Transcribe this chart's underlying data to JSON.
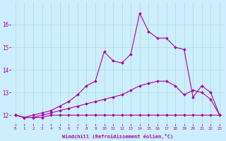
{
  "title": "",
  "xlabel": "Windchill (Refroidissement éolien,°C)",
  "ylabel": "",
  "background_color": "#cceeff",
  "grid_color": "#aaddcc",
  "line_color": "#aa00aa",
  "marker_color": "#aa00aa",
  "xlim": [
    -0.5,
    23.5
  ],
  "ylim": [
    11.6,
    17.0
  ],
  "yticks": [
    12,
    13,
    14,
    15,
    16
  ],
  "xticks": [
    0,
    1,
    2,
    3,
    4,
    5,
    6,
    7,
    8,
    9,
    10,
    11,
    12,
    13,
    14,
    15,
    16,
    17,
    18,
    19,
    20,
    21,
    22,
    23
  ],
  "series": [
    {
      "x": [
        0,
        1,
        2,
        3,
        4,
        5,
        6,
        7,
        8,
        9,
        10,
        11,
        12,
        13,
        14,
        15,
        16,
        17,
        18,
        19,
        20,
        21,
        22,
        23
      ],
      "y": [
        12.0,
        11.9,
        11.9,
        11.9,
        12.0,
        12.0,
        12.0,
        12.0,
        12.0,
        12.0,
        12.0,
        12.0,
        12.0,
        12.0,
        12.0,
        12.0,
        12.0,
        12.0,
        12.0,
        12.0,
        12.0,
        12.0,
        12.0,
        12.0
      ]
    },
    {
      "x": [
        0,
        1,
        2,
        3,
        4,
        5,
        6,
        7,
        8,
        9,
        10,
        11,
        12,
        13,
        14,
        15,
        16,
        17,
        18,
        19,
        20,
        21,
        22,
        23
      ],
      "y": [
        12.0,
        11.9,
        11.9,
        12.0,
        12.1,
        12.2,
        12.3,
        12.4,
        12.5,
        12.6,
        12.7,
        12.8,
        12.9,
        13.1,
        13.3,
        13.4,
        13.5,
        13.5,
        13.3,
        12.9,
        13.1,
        13.0,
        12.7,
        12.0
      ]
    },
    {
      "x": [
        0,
        1,
        2,
        3,
        4,
        5,
        6,
        7,
        8,
        9,
        10,
        11,
        12,
        13,
        14,
        15,
        16,
        17,
        18,
        19,
        20,
        21,
        22,
        23
      ],
      "y": [
        12.0,
        11.9,
        12.0,
        12.1,
        12.2,
        12.4,
        12.6,
        12.9,
        13.3,
        13.5,
        14.8,
        14.4,
        14.3,
        14.7,
        16.5,
        15.7,
        15.4,
        15.4,
        15.0,
        14.9,
        12.8,
        13.3,
        13.0,
        12.0
      ]
    }
  ]
}
